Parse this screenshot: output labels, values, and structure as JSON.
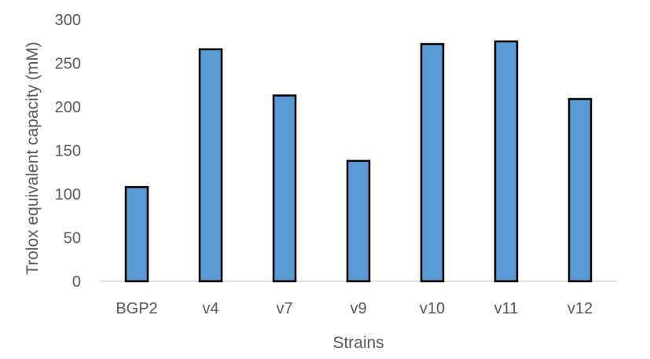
{
  "chart_data": {
    "type": "bar",
    "categories": [
      "BGP2",
      "v4",
      "v7",
      "v9",
      "v10",
      "v11",
      "v12"
    ],
    "values": [
      108,
      266,
      213,
      138,
      272,
      275,
      209
    ],
    "title": "",
    "xlabel": "Strains",
    "ylabel": "Trolox equivalent capacity (mM)",
    "ylim": [
      0,
      300
    ],
    "yticks": [
      0,
      50,
      100,
      150,
      200,
      250,
      300
    ],
    "grid": false,
    "legend": "none",
    "colors": {
      "bar_fill": "#5b9bd5",
      "bar_stroke": "#000000",
      "text": "#595959",
      "axis": "#d9d9d9"
    }
  }
}
